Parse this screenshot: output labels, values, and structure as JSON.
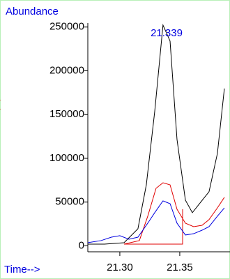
{
  "chart_data": {
    "type": "line",
    "y_label": "Abundance",
    "x_label": "Time-->",
    "side_mark": "(",
    "annotation": {
      "text": "21.339",
      "x": 21.339
    },
    "xlim": [
      21.2733,
      21.3919
    ],
    "ylim": [
      -6000,
      253000
    ],
    "xticks": [
      {
        "value": 21.3,
        "label": "21.30"
      },
      {
        "value": 21.35,
        "label": "21.35"
      }
    ],
    "yticks": [
      0,
      50000,
      100000,
      150000,
      200000,
      250000
    ],
    "series": [
      {
        "color": "#000000",
        "x": [
          21.2733,
          21.2872,
          21.3035,
          21.3151,
          21.3221,
          21.3291,
          21.336,
          21.3419,
          21.3477,
          21.3547,
          21.3605,
          21.3674,
          21.3744,
          21.3814,
          21.3872
        ],
        "values": [
          2000,
          2000,
          3600,
          19500,
          69700,
          153400,
          252200,
          234000,
          121500,
          52200,
          37900,
          49800,
          61800,
          105600,
          179700
        ]
      },
      {
        "color": "#e00000",
        "x": [
          21.3035,
          21.3163,
          21.3233,
          21.3302,
          21.336,
          21.3419,
          21.3477,
          21.3547,
          21.3616,
          21.3686,
          21.3744,
          21.3814,
          21.3872
        ],
        "values": [
          2000,
          6000,
          33900,
          65700,
          72100,
          69700,
          41800,
          25900,
          21900,
          23500,
          29900,
          43400,
          55400
        ]
      },
      {
        "color": "#0000e0",
        "x": [
          21.2733,
          21.2843,
          21.293,
          21.3,
          21.3076,
          21.3151,
          21.3233,
          21.3291,
          21.336,
          21.3419,
          21.3477,
          21.3547,
          21.3616,
          21.3686,
          21.3744,
          21.3814,
          21.3872
        ],
        "values": [
          3600,
          6000,
          9900,
          11600,
          7600,
          9900,
          25900,
          37900,
          51400,
          48200,
          25900,
          12400,
          13900,
          17900,
          21900,
          33900,
          43400
        ]
      }
    ]
  }
}
